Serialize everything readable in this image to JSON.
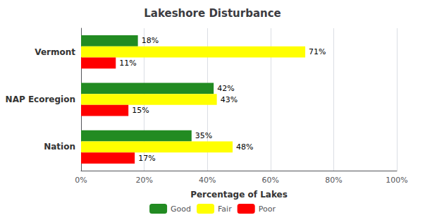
{
  "chart_data": {
    "type": "bar",
    "orientation": "horizontal",
    "title": "Lakeshore Disturbance",
    "xlabel": "Percentage of Lakes",
    "categories": [
      "Vermont",
      "NAP Ecoregion",
      "Nation"
    ],
    "series": [
      {
        "name": "Good",
        "color": "#228B22",
        "values": [
          18,
          42,
          35
        ],
        "value_labels": [
          "18%",
          "42%",
          "35%"
        ]
      },
      {
        "name": "Fair",
        "color": "#FFFF00",
        "values": [
          71,
          43,
          48
        ],
        "value_labels": [
          "71%",
          "43%",
          "48%"
        ]
      },
      {
        "name": "Poor",
        "color": "#FF0000",
        "values": [
          11,
          15,
          17
        ],
        "value_labels": [
          "11%",
          "15%",
          "17%"
        ]
      }
    ],
    "xlim": [
      0,
      100
    ],
    "xticks": [
      {
        "value": 0,
        "label": "0%"
      },
      {
        "value": 20,
        "label": "20%"
      },
      {
        "value": 40,
        "label": "40%"
      },
      {
        "value": 60,
        "label": "60%"
      },
      {
        "value": 80,
        "label": "80%"
      },
      {
        "value": 100,
        "label": "100%"
      }
    ],
    "grid": true,
    "data_labels": true,
    "legend": "bottom"
  }
}
